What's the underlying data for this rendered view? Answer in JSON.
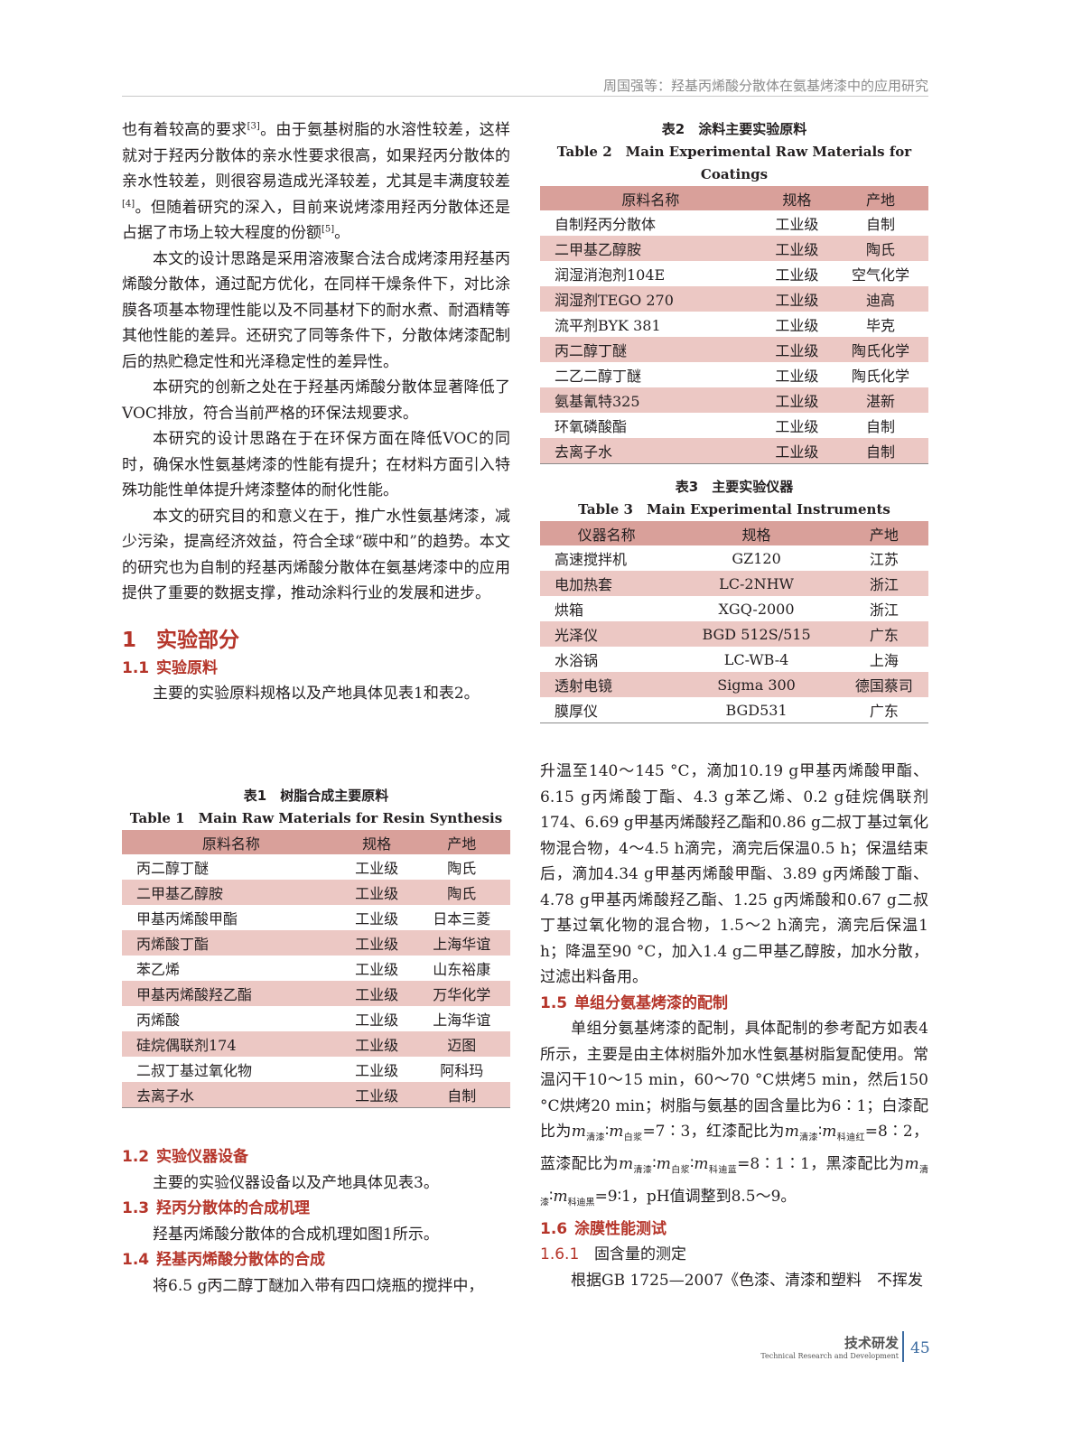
{
  "header": {
    "running_title": "周国强等：羟基丙烯酸分散体在氨基烤漆中的应用研究"
  },
  "left": {
    "paragraphs": [
      {
        "text": "也有着较高的要求",
        "ref": "[3]",
        "text2": "。由于氨基树脂的水溶性较差，这样就对于羟丙分散体的亲水性要求很高，如果羟丙分散体的亲水性较差，则很容易造成光泽较差，尤其是丰满度较差",
        "ref2": "[4]",
        "text3": "。但随着研究的深入，目前来说烤漆用羟丙分散体还是占据了市场上较大程度的份额",
        "ref3": "[5]",
        "text4": "。"
      },
      {
        "text": "本文的设计思路是采用溶液聚合法合成烤漆用羟基丙烯酸分散体，通过配方优化，在同样干燥条件下，对比涂膜各项基本物理性能以及不同基材下的耐水煮、耐酒精等其他性能的差异。还研究了同等条件下，分散体烤漆配制后的热贮稳定性和光泽稳定性的差异性。"
      },
      {
        "text": "本研究的创新之处在于羟基丙烯酸分散体显著降低了VOC排放，符合当前严格的环保法规要求。"
      },
      {
        "text": "本研究的设计思路在于在环保方面在降低VOC的同时，确保水性氨基烤漆的性能有提升；在材料方面引入特殊功能性单体提升烤漆整体的耐化性能。"
      },
      {
        "text": "本文的研究目的和意义在于，推广水性氨基烤漆，减少污染，提高经济效益，符合全球“碳中和”的趋势。本文的研究也为自制的羟基丙烯酸分散体在氨基烤漆中的应用提供了重要的数据支撑，推动涂料行业的发展和进步。"
      }
    ],
    "sec1": {
      "num": "1",
      "title": "实验部分"
    },
    "sec1_1": {
      "num": "1.1",
      "title": "实验原料",
      "text": "主要的实验原料规格以及产地具体见表1和表2。"
    },
    "sec1_2": {
      "num": "1.2",
      "title": "实验仪器设备",
      "text": "主要的实验仪器设备以及产地具体见表3。"
    },
    "sec1_3": {
      "num": "1.3",
      "title": "羟丙分散体的合成机理",
      "text": "羟基丙烯酸分散体的合成机理如图1所示。"
    },
    "sec1_4": {
      "num": "1.4",
      "title": "羟基丙烯酸分散体的合成",
      "text": "将6.5 g丙二醇丁醚加入带有四口烧瓶的搅拌中，"
    }
  },
  "table1": {
    "caption_cn": "表1　树脂合成主要原料",
    "caption_en": "Table 1　Main Raw Materials for Resin Synthesis",
    "headers": [
      "原料名称",
      "规格",
      "产地"
    ],
    "rows": [
      [
        "丙二醇丁醚",
        "工业级",
        "陶氏"
      ],
      [
        "二甲基乙醇胺",
        "工业级",
        "陶氏"
      ],
      [
        "甲基丙烯酸甲酯",
        "工业级",
        "日本三菱"
      ],
      [
        "丙烯酸丁酯",
        "工业级",
        "上海华谊"
      ],
      [
        "苯乙烯",
        "工业级",
        "山东裕康"
      ],
      [
        "甲基丙烯酸羟乙酯",
        "工业级",
        "万华化学"
      ],
      [
        "丙烯酸",
        "工业级",
        "上海华谊"
      ],
      [
        "硅烷偶联剂174",
        "工业级",
        "迈图"
      ],
      [
        "二叔丁基过氧化物",
        "工业级",
        "阿科玛"
      ],
      [
        "去离子水",
        "工业级",
        "自制"
      ]
    ]
  },
  "table2": {
    "caption_cn": "表2　涂料主要实验原料",
    "caption_en": "Table 2　Main Experimental Raw Materials for Coatings",
    "headers": [
      "原料名称",
      "规格",
      "产地"
    ],
    "rows": [
      [
        "自制羟丙分散体",
        "工业级",
        "自制"
      ],
      [
        "二甲基乙醇胺",
        "工业级",
        "陶氏"
      ],
      [
        "润湿消泡剂104E",
        "工业级",
        "空气化学"
      ],
      [
        "润湿剂TEGO 270",
        "工业级",
        "迪高"
      ],
      [
        "流平剂BYK 381",
        "工业级",
        "毕克"
      ],
      [
        "丙二醇丁醚",
        "工业级",
        "陶氏化学"
      ],
      [
        "二乙二醇丁醚",
        "工业级",
        "陶氏化学"
      ],
      [
        "氨基氰特325",
        "工业级",
        "湛新"
      ],
      [
        "环氧磷酸酯",
        "工业级",
        "自制"
      ],
      [
        "去离子水",
        "工业级",
        "自制"
      ]
    ]
  },
  "table3": {
    "caption_cn": "表3　主要实验仪器",
    "caption_en": "Table 3　Main Experimental Instruments",
    "headers": [
      "仪器名称",
      "规格",
      "产地"
    ],
    "rows": [
      [
        "高速搅拌机",
        "GZ120",
        "江苏"
      ],
      [
        "电加热套",
        "LC-2NHW",
        "浙江"
      ],
      [
        "烘箱",
        "XGQ-2000",
        "浙江"
      ],
      [
        "光泽仪",
        "BGD 512S/515",
        "广东"
      ],
      [
        "水浴锅",
        "LC-WB-4",
        "上海"
      ],
      [
        "透射电镜",
        "Sigma 300",
        "德国蔡司"
      ],
      [
        "膜厚仪",
        "BGD531",
        "广东"
      ]
    ]
  },
  "right": {
    "synthesis_text": "升温至140～145 °C，滴加10.19 g甲基丙烯酸甲酯、6.15 g丙烯酸丁酯、4.3 g苯乙烯、0.2 g硅烷偶联剂174、6.69 g甲基丙烯酸羟乙酯和0.86 g二叔丁基过氧化物混合物，4～4.5 h滴完，滴完后保温0.5 h；保温结束后，滴加4.34 g甲基丙烯酸甲酯、3.89 g丙烯酸丁酯、4.78 g甲基丙烯酸羟乙酯、1.25 g丙烯酸和0.67 g二叔丁基过氧化物的混合物，1.5～2 h滴完，滴完后保温1 h；降温至90 °C，加入1.4 g二甲基乙醇胺，加水分散，过滤出料备用。",
    "sec1_5": {
      "num": "1.5",
      "title": "单组分氨基烤漆的配制",
      "text_a": "单组分氨基烤漆的配制，具体配制的参考配方如表4所示，主要是由主体树脂外加水性氨基树脂复配使用。常温闪干10～15 min，60～70 °C烘烤5 min，然后150 °C烘烤20 min；树脂与氨基的固含量比为6∶1；白漆配比为",
      "m": "m",
      "s_qingqi": "清漆",
      "s_baijiang": "白浆",
      "s_hong": "科迪红",
      "s_lan": "科迪蓝",
      "s_hei": "科迪黑",
      "r1": "∶",
      "r1b": "=7∶3，红漆配比为",
      "r2": "=8∶2，蓝漆配比为",
      "r3": "=8∶1∶1，黑漆配比为",
      "r4": "=9∶1，pH值调整到8.5～9。"
    },
    "sec1_6": {
      "num": "1.6",
      "title": "涂膜性能测试"
    },
    "sec1_6_1": {
      "num": "1.6.1",
      "title": "固含量的测定",
      "text": "根据GB 1725—2007《色漆、清漆和塑料　不挥发"
    }
  },
  "footer": {
    "section_cn": "技术研发",
    "section_en": "Technical Research and Development",
    "page": "45"
  },
  "colors": {
    "heading": "#b5352a",
    "table_header": "#d9a09a",
    "table_alt_row": "#ecc8c4",
    "page_number": "#3a6aa0"
  }
}
